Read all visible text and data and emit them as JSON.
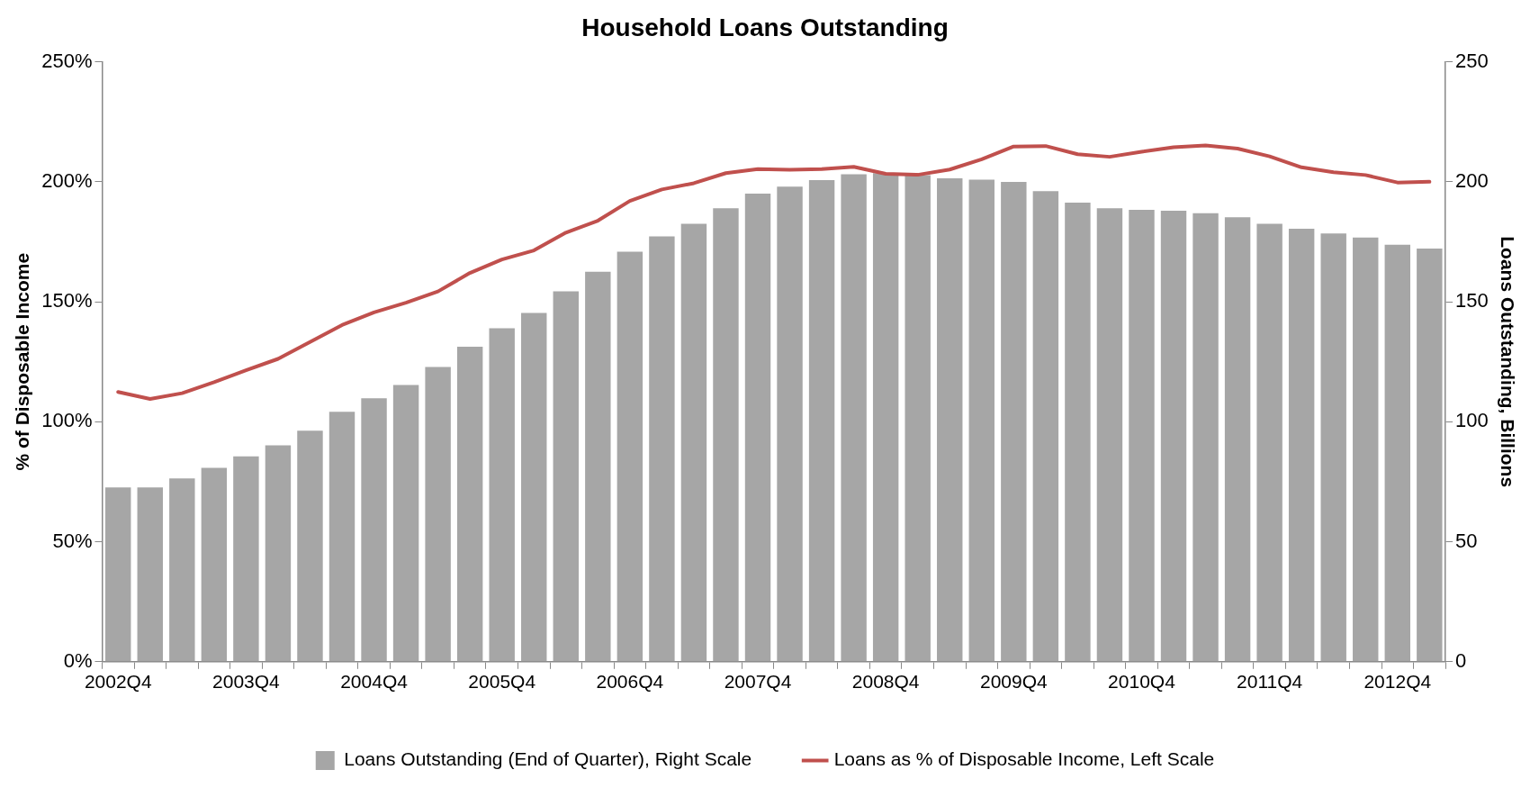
{
  "chart_data": {
    "type": "bar",
    "title": "Household Loans Outstanding",
    "ylabel": "% of Disposable Income",
    "y2label": "Loans Outstanding, Billions",
    "categories": [
      "2002Q4",
      null,
      null,
      null,
      "2003Q4",
      null,
      null,
      null,
      "2004Q4",
      null,
      null,
      null,
      "2005Q4",
      null,
      null,
      null,
      "2006Q4",
      null,
      null,
      null,
      "2007Q4",
      null,
      null,
      null,
      "2008Q4",
      null,
      null,
      null,
      "2009Q4",
      null,
      null,
      null,
      "2010Q4",
      null,
      null,
      null,
      "2011Q4",
      null,
      null,
      null,
      "2012Q4",
      null
    ],
    "series": [
      {
        "name": "Loans Outstanding (End of Quarter), Right Scale",
        "axis": "y2",
        "color": "#a6a6a6",
        "values": [
          72.6,
          72.6,
          76.4,
          80.8,
          85.6,
          90.2,
          96.3,
          104.2,
          109.8,
          115.3,
          122.8,
          131.3,
          139,
          145.3,
          154.3,
          162.5,
          170.9,
          177.2,
          182.5,
          189,
          195.1,
          198,
          200.7,
          203.1,
          203.6,
          202.8,
          201.4,
          200.9,
          199.9,
          196.1,
          191.3,
          189,
          188.3,
          187.9,
          186.9,
          185.2,
          182.5,
          180.4,
          178.5,
          176.8,
          173.8,
          172.2
        ]
      },
      {
        "name": "Loans as % of Disposable Income, Left Scale",
        "type": "line",
        "color": "#c0504d",
        "values": [
          112.4,
          109.5,
          111.9,
          116.5,
          121.5,
          126.2,
          133.2,
          140.3,
          145.6,
          149.6,
          154.3,
          162,
          167.6,
          171.4,
          178.8,
          183.8,
          192,
          196.8,
          199.4,
          203.6,
          205.3,
          205,
          205.3,
          206.2,
          203.3,
          202.9,
          205.1,
          209.4,
          214.7,
          214.9,
          211.5,
          210.4,
          212.5,
          214.4,
          215.1,
          213.8,
          210.6,
          206,
          204,
          202.8,
          199.7,
          200
        ]
      }
    ],
    "ylim": [
      0,
      250
    ],
    "yticks": [
      {
        "value": 0,
        "label": "0%"
      },
      {
        "value": 50,
        "label": "50%"
      },
      {
        "value": 100,
        "label": "100%"
      },
      {
        "value": 150,
        "label": "150%"
      },
      {
        "value": 200,
        "label": "200%"
      },
      {
        "value": 250,
        "label": "250%"
      }
    ],
    "y2lim": [
      0,
      250
    ],
    "y2ticks": [
      0,
      50,
      100,
      150,
      200,
      250
    ],
    "grid": false,
    "legend": "bottom",
    "marker": "none"
  }
}
